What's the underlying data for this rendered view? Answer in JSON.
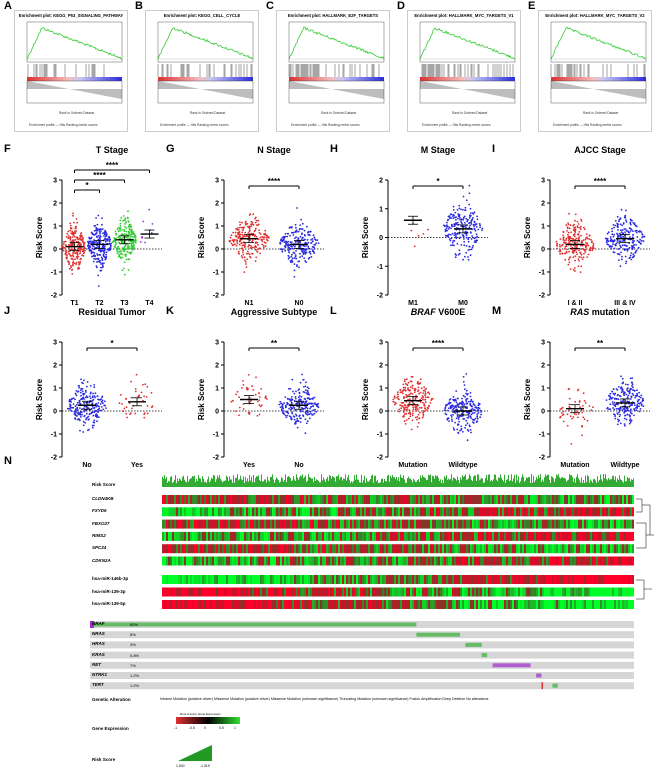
{
  "colors": {
    "gsea_line": "#33cc33",
    "red": "#e03030",
    "blue": "#2a2ae0",
    "green": "#33cc33"
  },
  "gsea_panels": [
    {
      "letter": "A",
      "title": "Enrichment plot: KEGG_P53_SIGNALING_PATHWAY"
    },
    {
      "letter": "B",
      "title": "Enrichment plot: KEGG_CELL_CYCLE"
    },
    {
      "letter": "C",
      "title": "Enrichment plot: HALLMARK_E2F_TARGETS"
    },
    {
      "letter": "D",
      "title": "Enrichment plot: HALLMARK_MYC_TARGETS_V1"
    },
    {
      "letter": "E",
      "title": "Enrichment plot: HALLMARK_MYC_TARGETS_V2"
    }
  ],
  "gsea_footer": "Enrichment profile — Hits    Ranking metric scores",
  "gsea_xlabel": "Rank in Ordered Dataset",
  "chart_data": [
    {
      "letter": "F",
      "type": "scatter",
      "title": "T Stage",
      "ylabel": "Risk Score",
      "ylim": [
        -2,
        3
      ],
      "categories": [
        "T1",
        "T2",
        "T3",
        "T4"
      ],
      "means": [
        0.1,
        0.2,
        0.4,
        0.65
      ],
      "colors": [
        "#e03030",
        "#2a2ae0",
        "#33cc33",
        "#9933cc"
      ],
      "significance": [
        {
          "from": 0,
          "to": 1,
          "label": "*"
        },
        {
          "from": 0,
          "to": 2,
          "label": "****"
        },
        {
          "from": 0,
          "to": 3,
          "label": "****"
        }
      ]
    },
    {
      "letter": "G",
      "type": "scatter",
      "title": "N Stage",
      "ylabel": "Risk Score",
      "ylim": [
        -2,
        3
      ],
      "categories": [
        "N1",
        "N0"
      ],
      "means": [
        0.45,
        0.2
      ],
      "colors": [
        "#e03030",
        "#2a2ae0"
      ],
      "significance": [
        {
          "from": 0,
          "to": 1,
          "label": "****"
        }
      ]
    },
    {
      "letter": "H",
      "type": "scatter",
      "title": "M Stage",
      "ylabel": "Risk Score",
      "ylim": [
        -2,
        2
      ],
      "categories": [
        "M1",
        "M0"
      ],
      "means": [
        0.6,
        0.3
      ],
      "colors": [
        "#e03030",
        "#2a2ae0"
      ],
      "significance": [
        {
          "from": 0,
          "to": 1,
          "label": "*"
        }
      ]
    },
    {
      "letter": "I",
      "type": "scatter",
      "title": "AJCC Stage",
      "ylabel": "Risk Score",
      "ylim": [
        -2,
        3
      ],
      "categories": [
        "I & II",
        "III & IV"
      ],
      "means": [
        0.2,
        0.45
      ],
      "colors": [
        "#e03030",
        "#2a2ae0"
      ],
      "significance": [
        {
          "from": 0,
          "to": 1,
          "label": "****"
        }
      ]
    },
    {
      "letter": "J",
      "type": "scatter",
      "title": "Residual Tumor",
      "ylabel": "Risk Score",
      "ylim": [
        -2,
        3
      ],
      "categories": [
        "No",
        "Yes"
      ],
      "means": [
        0.25,
        0.4
      ],
      "colors": [
        "#2a2ae0",
        "#e03030"
      ],
      "significance": [
        {
          "from": 0,
          "to": 1,
          "label": "*"
        }
      ]
    },
    {
      "letter": "K",
      "type": "scatter",
      "title": "Aggressive Subtype",
      "ylabel": "Risk Score",
      "ylim": [
        -2,
        3
      ],
      "categories": [
        "Yes",
        "No"
      ],
      "means": [
        0.5,
        0.25
      ],
      "colors": [
        "#e03030",
        "#2a2ae0"
      ],
      "significance": [
        {
          "from": 0,
          "to": 1,
          "label": "**"
        }
      ]
    },
    {
      "letter": "L",
      "type": "scatter",
      "title": "BRAF V600E",
      "title_italic": "BRAF",
      "title_rest": " V600E",
      "ylabel": "Risk Score",
      "ylim": [
        -2,
        3
      ],
      "categories": [
        "Mutation",
        "Wildtype"
      ],
      "means": [
        0.45,
        0.0
      ],
      "colors": [
        "#e03030",
        "#2a2ae0"
      ],
      "significance": [
        {
          "from": 0,
          "to": 1,
          "label": "****"
        }
      ]
    },
    {
      "letter": "M",
      "type": "scatter",
      "title": "RAS mutation",
      "title_italic": "RAS",
      "title_rest": " mutation",
      "ylabel": "Risk Score",
      "ylim": [
        -2,
        3
      ],
      "categories": [
        "Mutation",
        "Wildtype"
      ],
      "means": [
        0.1,
        0.35
      ],
      "colors": [
        "#e03030",
        "#2a2ae0"
      ],
      "significance": [
        {
          "from": 0,
          "to": 1,
          "label": "**"
        }
      ]
    }
  ],
  "heatmap": {
    "letter": "N",
    "risk_label": "Risk Score",
    "genes": [
      "CLDN4KB",
      "FXYD6",
      "FBXO27",
      "RIMS2",
      "SPC24",
      "CDKN2A"
    ],
    "mirnas": [
      "hsa-miR-146b-3p",
      "hsa-miR-139-3p",
      "hsa-miR-139-5p"
    ],
    "mutations": [
      {
        "gene": "BRAF",
        "pct": "60%"
      },
      {
        "gene": "NRAS",
        "pct": "8%"
      },
      {
        "gene": "HRAS",
        "pct": "3%"
      },
      {
        "gene": "KRAS",
        "pct": "0.8%"
      },
      {
        "gene": "RET",
        "pct": "7%"
      },
      {
        "gene": "NTRK1",
        "pct": "1.2%"
      },
      {
        "gene": "TERT",
        "pct": "1.2%"
      }
    ],
    "legend_alteration_label": "Genetic Alteration",
    "legend_alteration_items": "Inframe Mutation (putative driver)   Missense Mutation (putative driver)   Missense Mutation (unknown significance)   Truncating Mutation (unknown significance)   Fusion   Amplification   Deep Deletion   No alterations",
    "legend_expression_label": "Gene Expression",
    "legend_expression_caption": "Row Z-score Gene Expression",
    "legend_expression_ticks": [
      "-1",
      "-0.5",
      "0",
      "0.5",
      "1"
    ],
    "legend_risk_label": "Risk Score",
    "legend_risk_min": "1.540",
    "legend_risk_max": "-1.319"
  }
}
